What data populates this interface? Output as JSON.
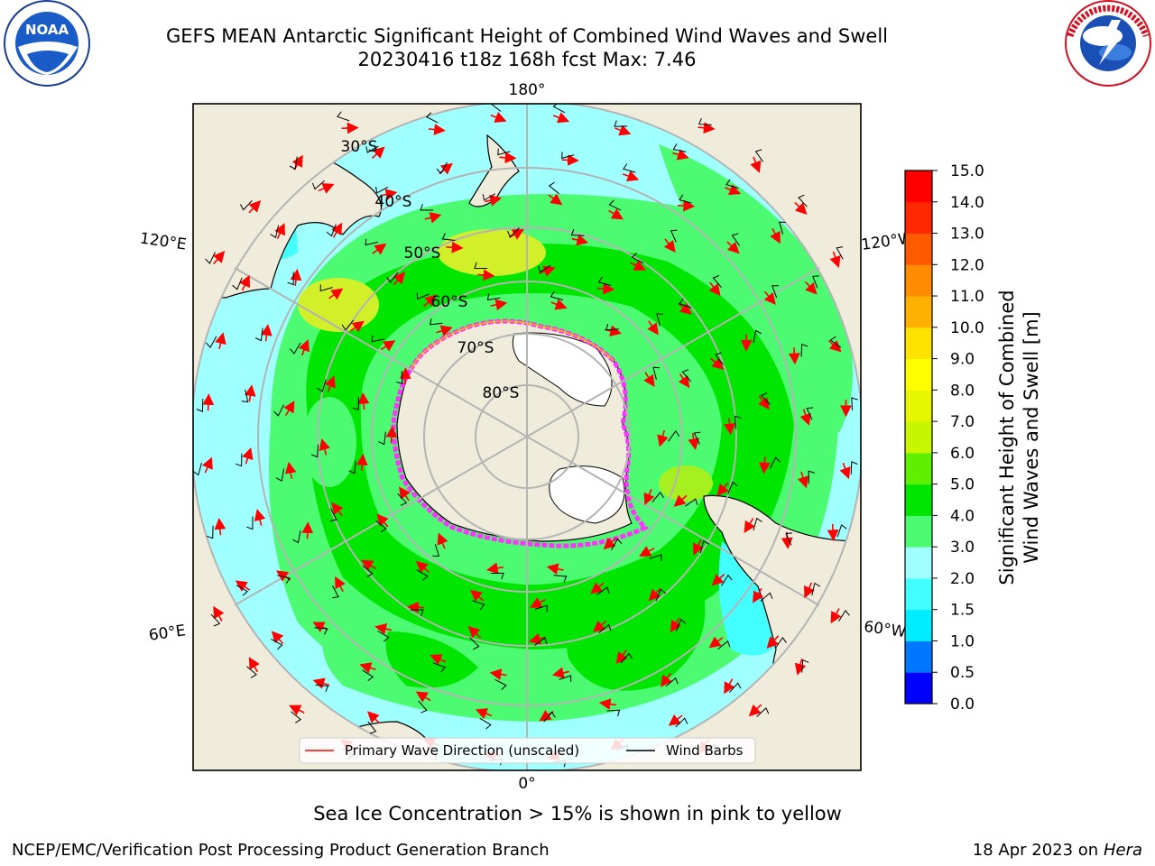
{
  "title": {
    "line1": "GEFS MEAN Antarctic Significant Height of Combined Wind Waves and Swell",
    "line2": "20230416 t18z 168h fcst   Max: 7.46"
  },
  "logos": {
    "left": {
      "name": "noaa-logo",
      "text": "NOAA"
    },
    "right": {
      "name": "nws-logo",
      "text": "NATIONAL WEATHER SERVICE"
    }
  },
  "map": {
    "longitude_labels": {
      "top": "180°",
      "bottom": "0°",
      "upper_left": "120°E",
      "upper_right": "120°W",
      "lower_left": "60°E",
      "lower_right": "60°W"
    },
    "latitude_labels": [
      "30°S",
      "40°S",
      "50°S",
      "60°S",
      "70°S",
      "80°S"
    ],
    "colors": {
      "land": "#efecdc",
      "ocean_light_cyan": "#a0ffff",
      "ocean_green": "#4dfb73",
      "ocean_bright_green": "#00e600",
      "yellow_green": "#d2f02a",
      "gridline": "#b4b4b4",
      "wave_arrow": "#ff0000",
      "wind_barb": "#000000",
      "sea_ice": "#ff33ff"
    }
  },
  "legend": {
    "items": [
      {
        "label": "Primary Wave Direction (unscaled)",
        "color": "#ff0000"
      },
      {
        "label": "Wind Barbs",
        "color": "#000000"
      }
    ]
  },
  "colorbar": {
    "title_line1": "Significant Height of Combined",
    "title_line2": "Wind Waves and Swell [m]",
    "ticks": [
      "0.0",
      "0.5",
      "1.0",
      "1.5",
      "2.0",
      "3.0",
      "4.0",
      "5.0",
      "6.0",
      "7.0",
      "8.0",
      "9.0",
      "10.0",
      "11.0",
      "12.0",
      "13.0",
      "14.0",
      "15.0"
    ],
    "colors": [
      "#0000ff",
      "#0077ff",
      "#00ecff",
      "#44ffff",
      "#a0ffff",
      "#4dfb73",
      "#00e600",
      "#5ef000",
      "#c8f500",
      "#e6f500",
      "#ffff00",
      "#ffe300",
      "#ffb000",
      "#ff8c00",
      "#ff5a00",
      "#ff2800",
      "#ff0000"
    ]
  },
  "footer": {
    "note": "Sea Ice Concentration > 15% is shown in pink to yellow",
    "credit_left": "NCEP/EMC/Verification Post Processing Product Generation Branch",
    "credit_right_date": "18 Apr 2023 on",
    "credit_right_host": "Hera"
  }
}
